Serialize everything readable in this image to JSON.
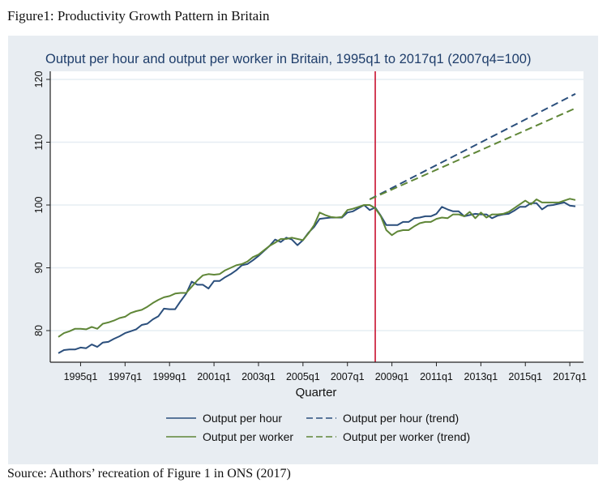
{
  "figure_caption": "Figure1: Productivity Growth Pattern in Britain",
  "source_note": "Source: Authors’ recreation of Figure 1 in ONS (2017)",
  "colors": {
    "hour": "#2b4f7c",
    "worker": "#5f8637",
    "vline": "#c8102e",
    "panel": "#e8edf2",
    "title": "#1f3e6b"
  },
  "chart_data": {
    "type": "line",
    "title": "Output per hour and output per worker in Britain, 1995q1 to 2017q1 (2007q4=100)",
    "xlabel": "Quarter",
    "ylabel": "",
    "x_start": "1994q1",
    "x_end": "2017q2",
    "ylim": [
      75,
      121
    ],
    "yticks": [
      80,
      90,
      100,
      110,
      120
    ],
    "ytick_labels": [
      "80",
      "90",
      "100",
      "110",
      "120"
    ],
    "xtick_labels": [
      "1995q1",
      "1997q1",
      "1999q1",
      "2001q1",
      "2003q1",
      "2005q1",
      "2007q1",
      "2009q1",
      "2011q1",
      "2013q1",
      "2015q1",
      "2017q1"
    ],
    "grid": true,
    "vertical_line_at": "2008q2",
    "legend_position": "bottom",
    "series": [
      {
        "name": "Output per hour",
        "style": "solid",
        "color_key": "hour",
        "start": "1994q1",
        "values": [
          76.4,
          76.9,
          77.0,
          77.0,
          77.3,
          77.2,
          77.8,
          77.4,
          78.1,
          78.2,
          78.7,
          79.1,
          79.6,
          79.9,
          80.2,
          80.9,
          81.1,
          81.8,
          82.3,
          83.5,
          83.4,
          83.4,
          84.7,
          85.9,
          87.8,
          87.3,
          87.3,
          86.7,
          87.9,
          87.9,
          88.5,
          89.0,
          89.6,
          90.4,
          90.6,
          91.2,
          91.9,
          92.7,
          93.5,
          94.5,
          94.1,
          94.8,
          94.5,
          93.6,
          94.4,
          95.6,
          96.5,
          97.8,
          97.9,
          98.0,
          98.0,
          98.0,
          98.8,
          99.0,
          99.5,
          100.0,
          99.2,
          99.6,
          98.3,
          96.8,
          96.8,
          96.8,
          97.3,
          97.3,
          97.9,
          98.0,
          98.2,
          98.2,
          98.6,
          99.7,
          99.3,
          99.0,
          99.0,
          98.2,
          98.4,
          98.6,
          98.5,
          98.5,
          97.9,
          98.3,
          98.5,
          98.6,
          99.1,
          99.7,
          99.7,
          100.3,
          100.3,
          99.3,
          99.9,
          100.0,
          100.2,
          100.4,
          99.9,
          99.8
        ]
      },
      {
        "name": "Output per worker",
        "style": "solid",
        "color_key": "worker",
        "start": "1994q1",
        "values": [
          79.0,
          79.6,
          79.9,
          80.3,
          80.3,
          80.2,
          80.6,
          80.3,
          81.1,
          81.3,
          81.6,
          82.0,
          82.2,
          82.8,
          83.1,
          83.3,
          83.8,
          84.4,
          84.9,
          85.3,
          85.5,
          85.9,
          86.0,
          86.0,
          87.0,
          88.0,
          88.8,
          89.0,
          88.9,
          89.0,
          89.6,
          90.0,
          90.4,
          90.6,
          91.0,
          91.7,
          92.1,
          92.8,
          93.5,
          94.0,
          94.6,
          94.6,
          94.8,
          94.6,
          94.4,
          95.5,
          96.8,
          98.8,
          98.4,
          98.1,
          98.0,
          98.1,
          99.2,
          99.4,
          99.7,
          100.0,
          100.0,
          99.5,
          98.2,
          96.0,
          95.2,
          95.8,
          96.0,
          96.0,
          96.6,
          97.1,
          97.3,
          97.3,
          97.8,
          98.0,
          97.9,
          98.5,
          98.5,
          98.2,
          98.9,
          97.9,
          98.8,
          98.0,
          98.5,
          98.5,
          98.6,
          98.9,
          99.5,
          100.1,
          100.7,
          100.1,
          100.9,
          100.4,
          100.4,
          100.4,
          100.4,
          100.7,
          101.0,
          100.8
        ]
      },
      {
        "name": "Output per hour (trend)",
        "style": "dashed",
        "color_key": "hour",
        "start": "2008q1",
        "end": "2017q2",
        "start_value": 100.9,
        "end_value": 117.7
      },
      {
        "name": "Output per worker (trend)",
        "style": "dashed",
        "color_key": "worker",
        "start": "2008q1",
        "end": "2017q2",
        "start_value": 100.9,
        "end_value": 115.4
      }
    ]
  }
}
